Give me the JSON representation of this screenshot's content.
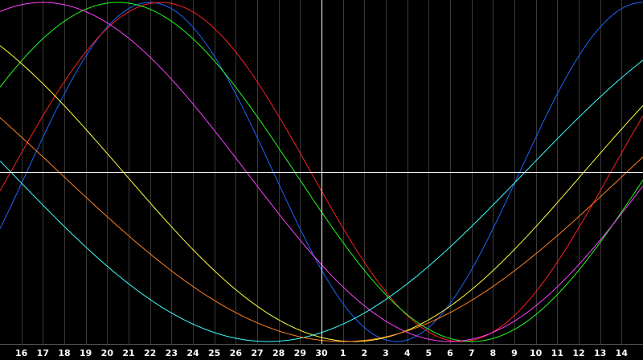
{
  "chart_data": {
    "type": "line",
    "title": "",
    "xlabel": "",
    "ylabel": "",
    "grid": true,
    "x_ticks": [
      "16",
      "17",
      "18",
      "19",
      "20",
      "21",
      "22",
      "23",
      "24",
      "25",
      "26",
      "27",
      "28",
      "29",
      "30",
      "1",
      "2",
      "3",
      "4",
      "5",
      "6",
      "7",
      "8",
      "9",
      "10",
      "11",
      "12",
      "13",
      "14"
    ],
    "center_x_label": "30",
    "series": [
      {
        "color": "#1e64ff",
        "period_days": 23,
        "peak_day_offset": 29.0
      },
      {
        "color": "#ff2020",
        "period_days": 28,
        "peak_day_offset": 34.5
      },
      {
        "color": "#20ff20",
        "period_days": 33,
        "peak_day_offset": 37.5
      },
      {
        "color": "#ff40ff",
        "period_days": 38,
        "peak_day_offset": 39.0
      },
      {
        "color": "#ffff40",
        "period_days": 43,
        "peak_day_offset": 37.0
      },
      {
        "color": "#40ffff",
        "period_days": 48,
        "peak_day_offset": 35.5
      },
      {
        "color": "#ff8020",
        "period_days": 53,
        "peak_day_offset": 41.5
      }
    ],
    "colors": {
      "background": "#000000",
      "gridline": "#3a3a3a",
      "axis": "#ffffff"
    }
  }
}
